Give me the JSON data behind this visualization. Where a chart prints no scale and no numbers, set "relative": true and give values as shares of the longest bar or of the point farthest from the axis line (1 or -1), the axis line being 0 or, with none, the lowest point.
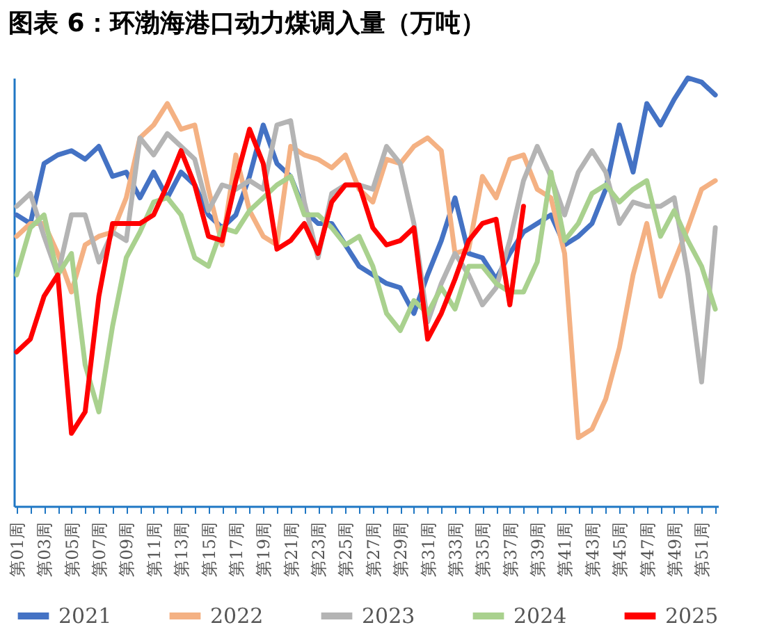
{
  "chart_data": {
    "type": "line",
    "title": "图表 6：环渤海港口动力煤调入量（万吨）",
    "relative": true,
    "legend": "bottom",
    "categories": [
      "第01周",
      null,
      "第03周",
      null,
      "第05周",
      null,
      "第07周",
      null,
      "第09周",
      null,
      "第11周",
      null,
      "第13周",
      null,
      "第15周",
      null,
      "第17周",
      null,
      "第19周",
      null,
      "第21周",
      null,
      "第23周",
      null,
      "第25周",
      null,
      "第27周",
      null,
      "第29周",
      null,
      "第31周",
      null,
      "第33周",
      null,
      "第35周",
      null,
      "第37周",
      null,
      "第39周",
      null,
      "第41周",
      null,
      "第43周",
      null,
      "第45周",
      null,
      "第47周",
      null,
      "第49周",
      null,
      "第51周",
      null
    ],
    "series": [
      {
        "name": "2021",
        "color": "#4472c4",
        "values": [
          0.68,
          0.66,
          0.8,
          0.82,
          0.83,
          0.81,
          0.84,
          0.77,
          0.78,
          0.72,
          0.78,
          0.72,
          0.78,
          0.75,
          0.68,
          0.65,
          0.68,
          0.77,
          0.89,
          0.8,
          0.77,
          0.69,
          0.66,
          0.66,
          0.61,
          0.56,
          0.54,
          0.52,
          0.51,
          0.45,
          0.54,
          0.62,
          0.72,
          0.59,
          0.58,
          0.53,
          0.59,
          0.64,
          0.66,
          0.68,
          0.61,
          0.63,
          0.66,
          0.74,
          0.89,
          0.78,
          0.94,
          0.89,
          0.95,
          1.0,
          0.99,
          0.96
        ]
      },
      {
        "name": "2022",
        "color": "#f4b183",
        "values": [
          0.63,
          0.66,
          0.66,
          0.59,
          0.5,
          0.61,
          0.63,
          0.64,
          0.72,
          0.86,
          0.89,
          0.94,
          0.88,
          0.89,
          0.74,
          0.61,
          0.82,
          0.69,
          0.63,
          0.61,
          0.84,
          0.82,
          0.81,
          0.79,
          0.82,
          0.74,
          0.71,
          0.81,
          0.8,
          0.84,
          0.86,
          0.83,
          0.59,
          0.6,
          0.77,
          0.72,
          0.81,
          0.82,
          0.74,
          0.72,
          0.59,
          0.16,
          0.18,
          0.25,
          0.37,
          0.54,
          0.66,
          0.49,
          0.57,
          0.65,
          0.74,
          0.76
        ]
      },
      {
        "name": "2023",
        "color": "#b4b4b4",
        "values": [
          0.7,
          0.73,
          0.63,
          0.54,
          0.68,
          0.68,
          0.57,
          0.64,
          0.62,
          0.86,
          0.82,
          0.87,
          0.84,
          0.81,
          0.69,
          0.75,
          0.74,
          0.76,
          0.74,
          0.89,
          0.9,
          0.71,
          0.58,
          0.73,
          0.75,
          0.75,
          0.74,
          0.84,
          0.8,
          0.66,
          0.43,
          0.52,
          0.59,
          0.54,
          0.47,
          0.51,
          0.62,
          0.76,
          0.84,
          0.77,
          0.68,
          0.78,
          0.83,
          0.78,
          0.66,
          0.71,
          0.7,
          0.7,
          0.72,
          0.54,
          0.29,
          0.65
        ]
      },
      {
        "name": "2024",
        "color": "#a9d18e",
        "values": [
          0.54,
          0.65,
          0.68,
          0.54,
          0.59,
          0.33,
          0.22,
          0.42,
          0.58,
          0.64,
          0.71,
          0.72,
          0.68,
          0.58,
          0.56,
          0.65,
          0.64,
          0.69,
          0.72,
          0.75,
          0.77,
          0.68,
          0.68,
          0.65,
          0.61,
          0.63,
          0.56,
          0.45,
          0.41,
          0.48,
          0.45,
          0.51,
          0.46,
          0.56,
          0.56,
          0.52,
          0.5,
          0.5,
          0.57,
          0.78,
          0.62,
          0.66,
          0.73,
          0.75,
          0.71,
          0.74,
          0.76,
          0.63,
          0.69,
          0.62,
          0.56,
          0.46
        ]
      },
      {
        "name": "2025",
        "color": "#ff0000",
        "values": [
          0.36,
          0.39,
          0.49,
          0.54,
          0.17,
          0.22,
          0.49,
          0.66,
          0.66,
          0.66,
          0.68,
          0.75,
          0.83,
          0.75,
          0.63,
          0.62,
          0.76,
          0.88,
          0.8,
          0.6,
          0.62,
          0.66,
          0.59,
          0.71,
          0.75,
          0.75,
          0.65,
          0.61,
          0.62,
          0.65,
          0.39,
          0.45,
          0.53,
          0.62,
          0.66,
          0.67,
          0.47,
          0.7,
          null,
          null,
          null,
          null,
          null,
          null,
          null,
          null,
          null,
          null,
          null,
          null,
          null,
          null
        ]
      }
    ]
  }
}
